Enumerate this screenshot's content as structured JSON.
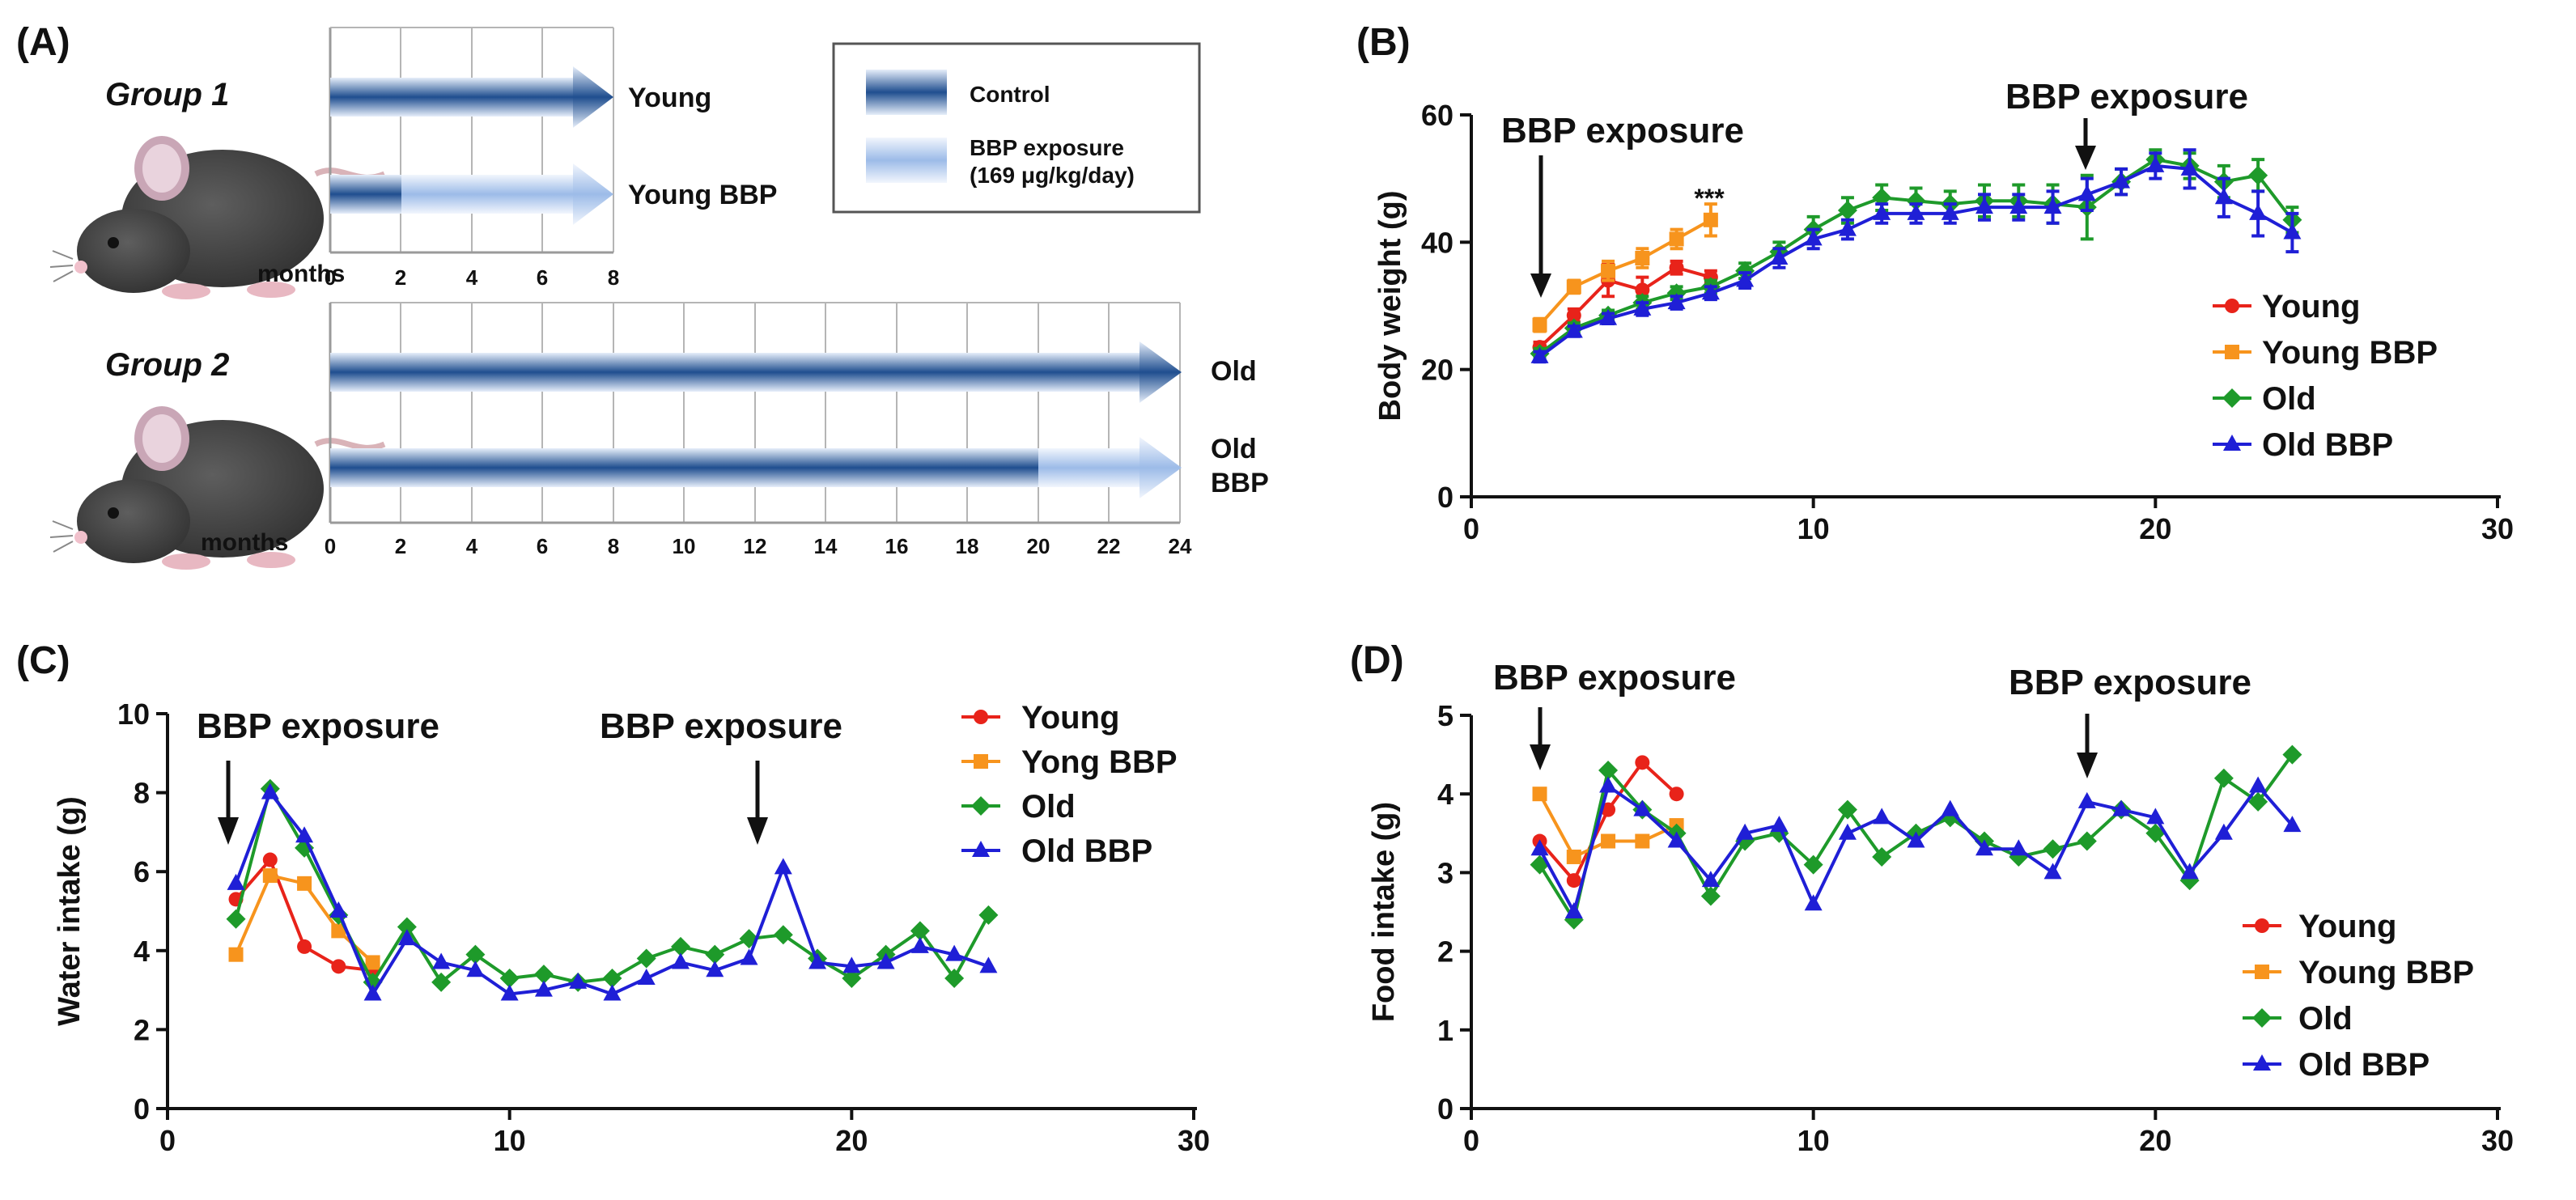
{
  "panels": {
    "A": {
      "label": "(A)",
      "group1": {
        "title": "Group 1",
        "months_label": "months",
        "ticks": [
          "0",
          "2",
          "4",
          "6",
          "8"
        ],
        "bars": [
          {
            "label": "Young",
            "start_month": 0,
            "end_month": 8,
            "exposure_from_month": null
          },
          {
            "label": "Young BBP",
            "start_month": 0,
            "end_month": 8,
            "exposure_from_month": 2
          }
        ]
      },
      "group2": {
        "title": "Group 2",
        "months_label": "months",
        "ticks": [
          "0",
          "2",
          "4",
          "6",
          "8",
          "10",
          "12",
          "14",
          "16",
          "18",
          "20",
          "22",
          "24"
        ],
        "bars": [
          {
            "label": "Old",
            "start_month": 0,
            "end_month": 24,
            "exposure_from_month": null
          },
          {
            "label_line1": "Old",
            "label_line2": "BBP",
            "start_month": 0,
            "end_month": 24,
            "exposure_from_month": 20
          }
        ]
      },
      "legend": {
        "control": "Control",
        "exposure_line1": "BBP exposure",
        "exposure_line2": "(169 μg/kg/day)"
      }
    },
    "B": {
      "label": "(B)",
      "annotation_left": "BBP exposure",
      "annotation_right": "BBP exposure",
      "significance": "***"
    },
    "C": {
      "label": "(C)",
      "annotation_left": "BBP exposure",
      "annotation_right": "BBP exposure"
    },
    "D": {
      "label": "(D)",
      "annotation_left": "BBP exposure",
      "annotation_right": "BBP exposure"
    }
  },
  "colors": {
    "young": "#e8231a",
    "young_bbp": "#f7941d",
    "old": "#1e9a2a",
    "old_bbp": "#1f1fd6",
    "bar_dark": "#1f4e8f",
    "bar_mid": "#9fb8e0",
    "bar_light": "#e6eefa",
    "bar_exp_dark": "#9cbbe8",
    "bar_exp_light": "#f2f6fd"
  },
  "chart_data": [
    {
      "id": "B",
      "type": "line",
      "xlabel": "",
      "ylabel": "Body weight (g)",
      "xlim": [
        0,
        30
      ],
      "ylim": [
        0,
        60
      ],
      "xticks": [
        "0",
        "10",
        "20",
        "30"
      ],
      "yticks": [
        "0",
        "20",
        "40",
        "60"
      ],
      "legend": [
        "Young",
        "Young BBP",
        "Old",
        "Old BBP"
      ],
      "series": [
        {
          "name": "Young",
          "marker": "circle",
          "color_key": "young",
          "x": [
            2,
            3,
            4,
            5,
            6,
            7
          ],
          "y": [
            23.5,
            28.5,
            34,
            32.5,
            36,
            34.5
          ],
          "err": [
            0.8,
            1,
            2.5,
            2,
            1,
            1
          ]
        },
        {
          "name": "Young BBP",
          "marker": "square",
          "color_key": "young_bbp",
          "x": [
            2,
            3,
            4,
            5,
            6,
            7
          ],
          "y": [
            27,
            33,
            35.5,
            37.5,
            40.5,
            43.5
          ],
          "err": [
            1,
            1,
            1.5,
            1.5,
            1.5,
            2.5
          ]
        },
        {
          "name": "Old",
          "marker": "diamond",
          "color_key": "old",
          "x": [
            2,
            3,
            4,
            5,
            6,
            7,
            8,
            9,
            10,
            11,
            12,
            13,
            14,
            15,
            16,
            17,
            18,
            19,
            20,
            21,
            22,
            23,
            24
          ],
          "y": [
            22.5,
            26.5,
            28.5,
            30.5,
            32,
            33,
            35.5,
            38.5,
            42,
            45,
            47,
            46.5,
            46,
            46.5,
            46.5,
            46,
            45.5,
            49.5,
            53,
            52,
            49.5,
            50.5,
            43.5
          ],
          "err": [
            0.8,
            0.8,
            0.8,
            1,
            1,
            1,
            1.2,
            1.5,
            2,
            2,
            2,
            2,
            2,
            2.5,
            2.5,
            3,
            5,
            2,
            1.5,
            2,
            2.5,
            2.5,
            2
          ]
        },
        {
          "name": "Old BBP",
          "marker": "triangle",
          "color_key": "old_bbp",
          "x": [
            2,
            3,
            4,
            5,
            6,
            7,
            8,
            9,
            10,
            11,
            12,
            13,
            14,
            15,
            16,
            17,
            18,
            19,
            20,
            21,
            22,
            23,
            24
          ],
          "y": [
            22,
            26,
            28,
            29.5,
            30.5,
            32,
            34,
            37.5,
            40.5,
            42,
            44.5,
            44.5,
            44.5,
            45.5,
            45.5,
            45.5,
            47.5,
            49.5,
            52,
            51.5,
            47,
            44.5,
            41.5
          ],
          "err": [
            0.8,
            0.8,
            0.8,
            1,
            1,
            1,
            1.2,
            1.5,
            1.5,
            1.5,
            1.5,
            1.5,
            1.5,
            2,
            2,
            2.5,
            2.5,
            2,
            2,
            3,
            3,
            3.5,
            3
          ]
        }
      ]
    },
    {
      "id": "C",
      "type": "line",
      "xlabel": "",
      "ylabel": "Water intake (g)",
      "xlim": [
        0,
        30
      ],
      "ylim": [
        0,
        10
      ],
      "xticks": [
        "0",
        "10",
        "20",
        "30"
      ],
      "yticks": [
        "0",
        "2",
        "4",
        "6",
        "8",
        "10"
      ],
      "legend": [
        "Young",
        "Yong BBP",
        "Old",
        "Old BBP"
      ],
      "series": [
        {
          "name": "Young",
          "marker": "circle",
          "color_key": "young",
          "x": [
            2,
            3,
            4,
            5,
            6
          ],
          "y": [
            5.3,
            6.3,
            4.1,
            3.6,
            3.5
          ]
        },
        {
          "name": "Yong BBP",
          "marker": "square",
          "color_key": "young_bbp",
          "x": [
            2,
            3,
            4,
            5,
            6
          ],
          "y": [
            3.9,
            5.9,
            5.7,
            4.5,
            3.7
          ]
        },
        {
          "name": "Old",
          "marker": "diamond",
          "color_key": "old",
          "x": [
            2,
            3,
            4,
            5,
            6,
            7,
            8,
            9,
            10,
            11,
            12,
            13,
            14,
            15,
            16,
            17,
            18,
            19,
            20,
            21,
            22,
            23,
            24
          ],
          "y": [
            4.8,
            8.1,
            6.6,
            4.9,
            3.2,
            4.6,
            3.2,
            3.9,
            3.3,
            3.4,
            3.2,
            3.3,
            3.8,
            4.1,
            3.9,
            4.3,
            4.4,
            3.8,
            3.3,
            3.9,
            4.5,
            3.3,
            4.9
          ]
        },
        {
          "name": "Old BBP",
          "marker": "triangle",
          "color_key": "old_bbp",
          "x": [
            2,
            3,
            4,
            5,
            6,
            7,
            8,
            9,
            10,
            11,
            12,
            13,
            14,
            15,
            16,
            17,
            18,
            19,
            20,
            21,
            22,
            23,
            24
          ],
          "y": [
            5.7,
            8.0,
            6.9,
            5.0,
            2.9,
            4.3,
            3.7,
            3.5,
            2.9,
            3.0,
            3.2,
            2.9,
            3.3,
            3.7,
            3.5,
            3.8,
            6.1,
            3.7,
            3.6,
            3.7,
            4.1,
            3.9,
            3.6
          ]
        }
      ]
    },
    {
      "id": "D",
      "type": "line",
      "xlabel": "",
      "ylabel": "Food intake (g)",
      "xlim": [
        0,
        30
      ],
      "ylim": [
        0,
        5
      ],
      "xticks": [
        "0",
        "10",
        "20",
        "30"
      ],
      "yticks": [
        "0",
        "1",
        "2",
        "3",
        "4",
        "5"
      ],
      "legend": [
        "Young",
        "Young BBP",
        "Old",
        "Old BBP"
      ],
      "series": [
        {
          "name": "Young",
          "marker": "circle",
          "color_key": "young",
          "x": [
            2,
            3,
            4,
            5,
            6
          ],
          "y": [
            3.4,
            2.9,
            3.8,
            4.4,
            4.0
          ]
        },
        {
          "name": "Young BBP",
          "marker": "square",
          "color_key": "young_bbp",
          "x": [
            2,
            3,
            4,
            5,
            6
          ],
          "y": [
            4.0,
            3.2,
            3.4,
            3.4,
            3.6
          ]
        },
        {
          "name": "Old",
          "marker": "diamond",
          "color_key": "old",
          "x": [
            2,
            3,
            4,
            5,
            6,
            7,
            8,
            9,
            10,
            11,
            12,
            13,
            14,
            15,
            16,
            17,
            18,
            19,
            20,
            21,
            22,
            23,
            24
          ],
          "y": [
            3.1,
            2.4,
            4.3,
            3.8,
            3.5,
            2.7,
            3.4,
            3.5,
            3.1,
            3.8,
            3.2,
            3.5,
            3.7,
            3.4,
            3.2,
            3.3,
            3.4,
            3.8,
            3.5,
            2.9,
            4.2,
            3.9,
            4.5
          ]
        },
        {
          "name": "Old BBP",
          "marker": "triangle",
          "color_key": "old_bbp",
          "x": [
            2,
            3,
            4,
            5,
            6,
            7,
            8,
            9,
            10,
            11,
            12,
            13,
            14,
            15,
            16,
            17,
            18,
            19,
            20,
            21,
            22,
            23,
            24
          ],
          "y": [
            3.3,
            2.5,
            4.1,
            3.8,
            3.4,
            2.9,
            3.5,
            3.6,
            2.6,
            3.5,
            3.7,
            3.4,
            3.8,
            3.3,
            3.3,
            3.0,
            3.9,
            3.8,
            3.7,
            3.0,
            3.5,
            4.1,
            3.6
          ]
        }
      ]
    }
  ]
}
